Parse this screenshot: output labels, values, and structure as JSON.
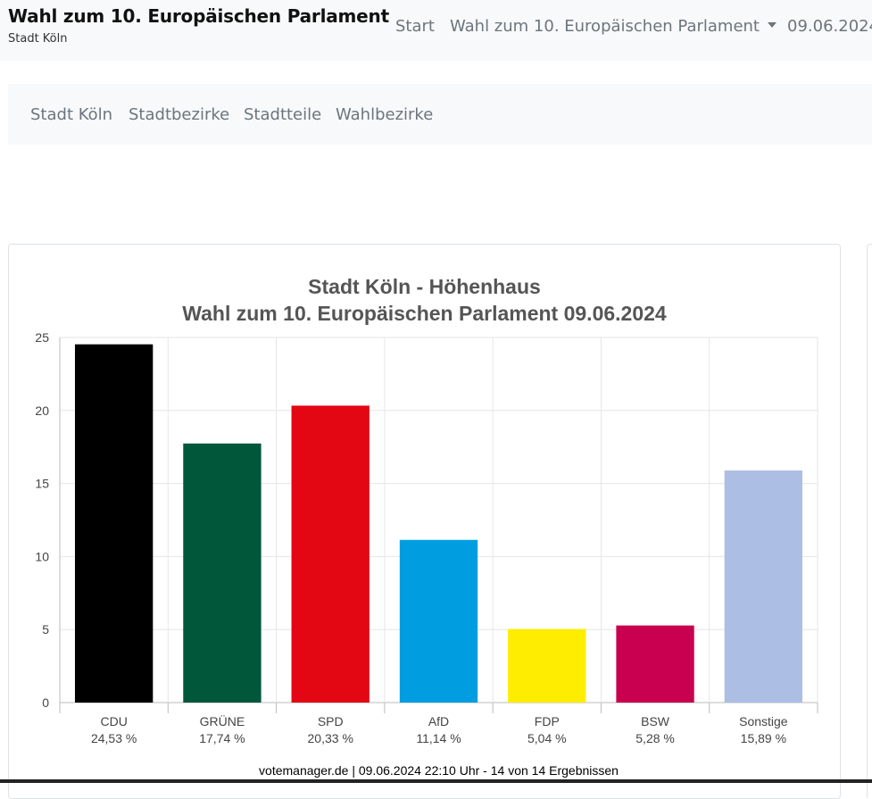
{
  "header": {
    "title": "Wahl zum 10. Europäischen Parlament",
    "subtitle": "Stadt Köln",
    "nav": {
      "start": "Start",
      "election": "Wahl zum 10. Europäischen Parlament",
      "date": "09.06.2024"
    }
  },
  "subnav": {
    "items": [
      "Stadt Köln",
      "Stadtbezirke",
      "Stadtteile",
      "Wahlbezirke"
    ]
  },
  "chart_data": {
    "type": "bar",
    "title": "Stadt Köln - Höhenhaus",
    "subtitle": "Wahl zum 10. Europäischen Parlament 09.06.2024",
    "categories": [
      "CDU",
      "GRÜNE",
      "SPD",
      "AfD",
      "FDP",
      "BSW",
      "Sonstige"
    ],
    "values": [
      24.53,
      17.74,
      20.33,
      11.14,
      5.04,
      5.28,
      15.89
    ],
    "value_labels": [
      "24,53 %",
      "17,74 %",
      "20,33 %",
      "11,14 %",
      "5,04 %",
      "5,28 %",
      "15,89 %"
    ],
    "colors": [
      "#000000",
      "#00573A",
      "#E30613",
      "#009EE0",
      "#FFED00",
      "#C8004F",
      "#ADBEE4"
    ],
    "yticks": [
      0,
      5,
      10,
      15,
      20,
      25
    ],
    "ylim": [
      0,
      25
    ],
    "xlabel": "",
    "ylabel": "",
    "grid": true,
    "legend": "none"
  },
  "footer": {
    "note": "votemanager.de | 09.06.2024 22:10 Uhr - 14 von 14 Ergebnissen"
  }
}
